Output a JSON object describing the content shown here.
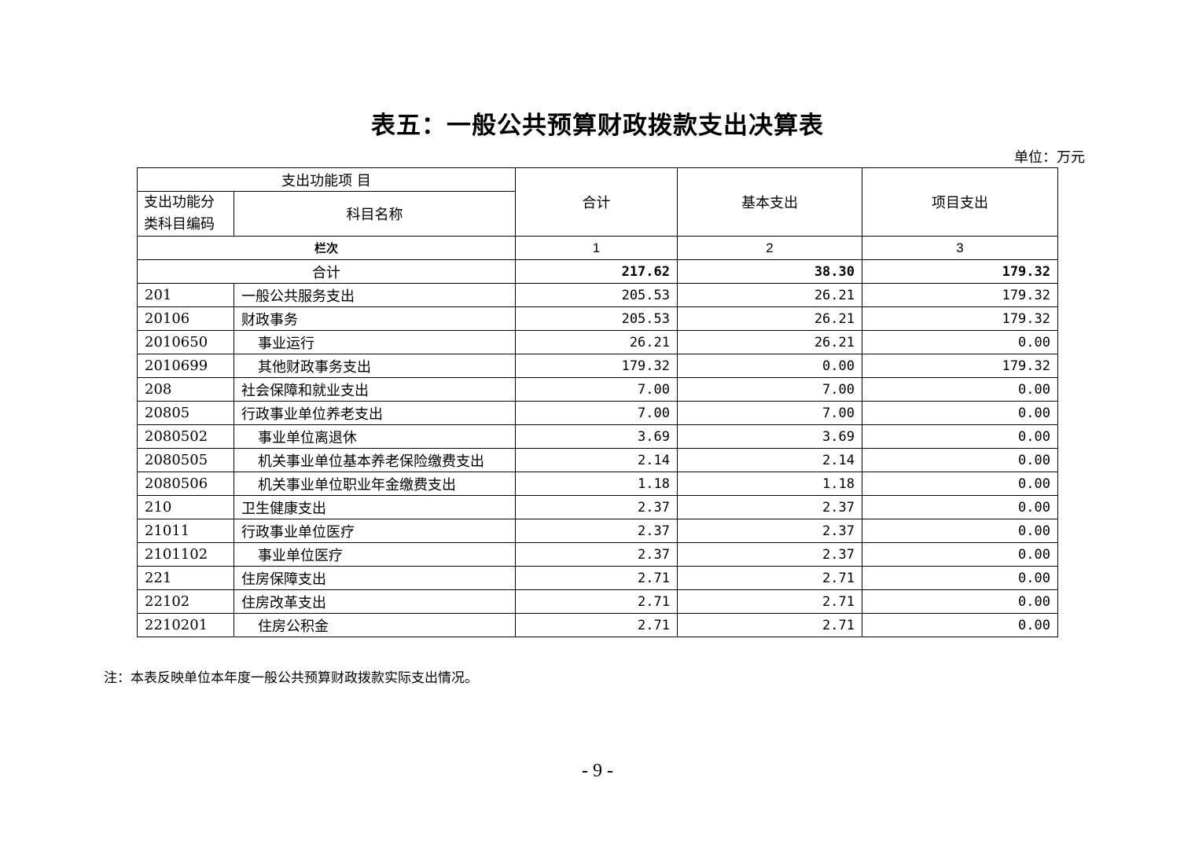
{
  "title": "表五：一般公共预算财政拨款支出决算表",
  "unit": "单位：万元",
  "header": {
    "group": "支出功能项 目",
    "code": "支出功能分类科目编码",
    "name": "科目名称",
    "total": "合计",
    "basic": "基本支出",
    "project": "项目支出",
    "col_label": "栏次",
    "col_nums": [
      "1",
      "2",
      "3"
    ]
  },
  "total_row": {
    "label": "合计",
    "total": "217.62",
    "basic": "38.30",
    "project": "179.32"
  },
  "rows": [
    {
      "code": "201",
      "name": "一般公共服务支出",
      "indent": false,
      "total": "205.53",
      "basic": "26.21",
      "project": "179.32"
    },
    {
      "code": "20106",
      "name": "财政事务",
      "indent": false,
      "total": "205.53",
      "basic": "26.21",
      "project": "179.32"
    },
    {
      "code": "2010650",
      "name": "事业运行",
      "indent": true,
      "total": "26.21",
      "basic": "26.21",
      "project": "0.00"
    },
    {
      "code": "2010699",
      "name": "其他财政事务支出",
      "indent": true,
      "total": "179.32",
      "basic": "0.00",
      "project": "179.32"
    },
    {
      "code": "208",
      "name": "社会保障和就业支出",
      "indent": false,
      "total": "7.00",
      "basic": "7.00",
      "project": "0.00"
    },
    {
      "code": "20805",
      "name": "行政事业单位养老支出",
      "indent": false,
      "total": "7.00",
      "basic": "7.00",
      "project": "0.00"
    },
    {
      "code": "2080502",
      "name": "事业单位离退休",
      "indent": true,
      "total": "3.69",
      "basic": "3.69",
      "project": "0.00"
    },
    {
      "code": "2080505",
      "name": "机关事业单位基本养老保险缴费支出",
      "indent": true,
      "total": "2.14",
      "basic": "2.14",
      "project": "0.00"
    },
    {
      "code": "2080506",
      "name": "机关事业单位职业年金缴费支出",
      "indent": true,
      "total": "1.18",
      "basic": "1.18",
      "project": "0.00"
    },
    {
      "code": "210",
      "name": "卫生健康支出",
      "indent": false,
      "total": "2.37",
      "basic": "2.37",
      "project": "0.00"
    },
    {
      "code": "21011",
      "name": "行政事业单位医疗",
      "indent": false,
      "total": "2.37",
      "basic": "2.37",
      "project": "0.00"
    },
    {
      "code": "2101102",
      "name": "事业单位医疗",
      "indent": true,
      "total": "2.37",
      "basic": "2.37",
      "project": "0.00"
    },
    {
      "code": "221",
      "name": "住房保障支出",
      "indent": false,
      "total": "2.71",
      "basic": "2.71",
      "project": "0.00"
    },
    {
      "code": "22102",
      "name": "住房改革支出",
      "indent": false,
      "total": "2.71",
      "basic": "2.71",
      "project": "0.00"
    },
    {
      "code": "2210201",
      "name": "住房公积金",
      "indent": true,
      "total": "2.71",
      "basic": "2.71",
      "project": "0.00"
    }
  ],
  "note": "注：本表反映单位本年度一般公共预算财政拨款实际支出情况。",
  "page_number": "- 9 -"
}
